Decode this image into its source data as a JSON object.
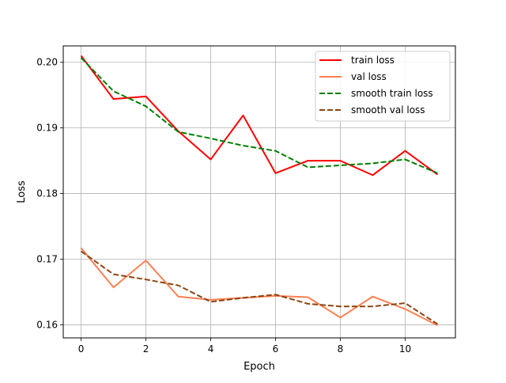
{
  "chart_data": {
    "type": "line",
    "title": "",
    "xlabel": "Epoch",
    "ylabel": "Loss",
    "xlim": [
      -0.55,
      11.55
    ],
    "ylim": [
      0.158,
      0.2025
    ],
    "x_ticks": [
      0,
      2,
      4,
      6,
      8,
      10
    ],
    "x_tick_labels": [
      "0",
      "2",
      "4",
      "6",
      "8",
      "10"
    ],
    "y_ticks": [
      0.16,
      0.17,
      0.18,
      0.19,
      0.2
    ],
    "y_tick_labels": [
      "0.16",
      "0.17",
      "0.18",
      "0.19",
      "0.20"
    ],
    "grid": true,
    "legend_position": "top-right",
    "x": [
      0,
      1,
      2,
      3,
      4,
      5,
      6,
      7,
      8,
      9,
      10,
      11
    ],
    "series": [
      {
        "name": "train loss",
        "color": "#ff0000",
        "style": "solid",
        "values": [
          0.201,
          0.1944,
          0.1948,
          0.1895,
          0.1852,
          0.1919,
          0.1831,
          0.185,
          0.185,
          0.1828,
          0.1865,
          0.1829
        ]
      },
      {
        "name": "val loss",
        "color": "#ff7f50",
        "style": "solid",
        "values": [
          0.1717,
          0.1657,
          0.1698,
          0.1643,
          0.1638,
          0.1641,
          0.1644,
          0.1642,
          0.1611,
          0.1643,
          0.1624,
          0.1599
        ]
      },
      {
        "name": "smooth train loss",
        "color": "#008000",
        "style": "dashed",
        "values": [
          0.2007,
          0.1956,
          0.1933,
          0.1894,
          0.1884,
          0.1873,
          0.1865,
          0.184,
          0.1843,
          0.1846,
          0.1852,
          0.1831
        ]
      },
      {
        "name": "smooth val loss",
        "color": "#8b4513",
        "style": "dashed",
        "values": [
          0.1712,
          0.1677,
          0.1669,
          0.166,
          0.1635,
          0.1641,
          0.1646,
          0.1632,
          0.1628,
          0.1628,
          0.1633,
          0.1601
        ]
      }
    ]
  }
}
